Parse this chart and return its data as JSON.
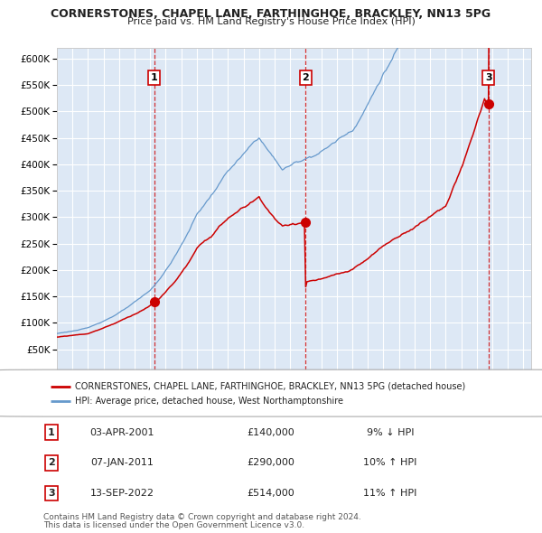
{
  "title": "CORNERSTONES, CHAPEL LANE, FARTHINGHOE, BRACKLEY, NN13 5PG",
  "subtitle": "Price paid vs. HM Land Registry's House Price Index (HPI)",
  "sale_dates_yr": [
    2001.25,
    2011.03,
    2022.71
  ],
  "sale_prices": [
    140000,
    290000,
    514000
  ],
  "sale_labels": [
    "1",
    "2",
    "3"
  ],
  "hpi_label": "HPI: Average price, detached house, West Northamptonshire",
  "property_label": "CORNERSTONES, CHAPEL LANE, FARTHINGHOE, BRACKLEY, NN13 5PG (detached house)",
  "red_line_color": "#cc0000",
  "blue_line_color": "#6699cc",
  "bg_color": "#dde8f5",
  "grid_color": "#ffffff",
  "vline_color": "#cc0000",
  "marker_color": "#cc0000",
  "ylim": [
    0,
    620000
  ],
  "yticks": [
    0,
    50000,
    100000,
    150000,
    200000,
    250000,
    300000,
    350000,
    400000,
    450000,
    500000,
    550000,
    600000
  ],
  "xlim_start": 1995.0,
  "xlim_end": 2025.5,
  "footnote1": "Contains HM Land Registry data © Crown copyright and database right 2024.",
  "footnote2": "This data is licensed under the Open Government Licence v3.0.",
  "table_rows": [
    {
      "num": "1",
      "date": "03-APR-2001",
      "price": "£140,000",
      "hpi": "9% ↓ HPI"
    },
    {
      "num": "2",
      "date": "07-JAN-2011",
      "price": "£290,000",
      "hpi": "10% ↑ HPI"
    },
    {
      "num": "3",
      "date": "13-SEP-2022",
      "price": "£514,000",
      "hpi": "11% ↑ HPI"
    }
  ]
}
